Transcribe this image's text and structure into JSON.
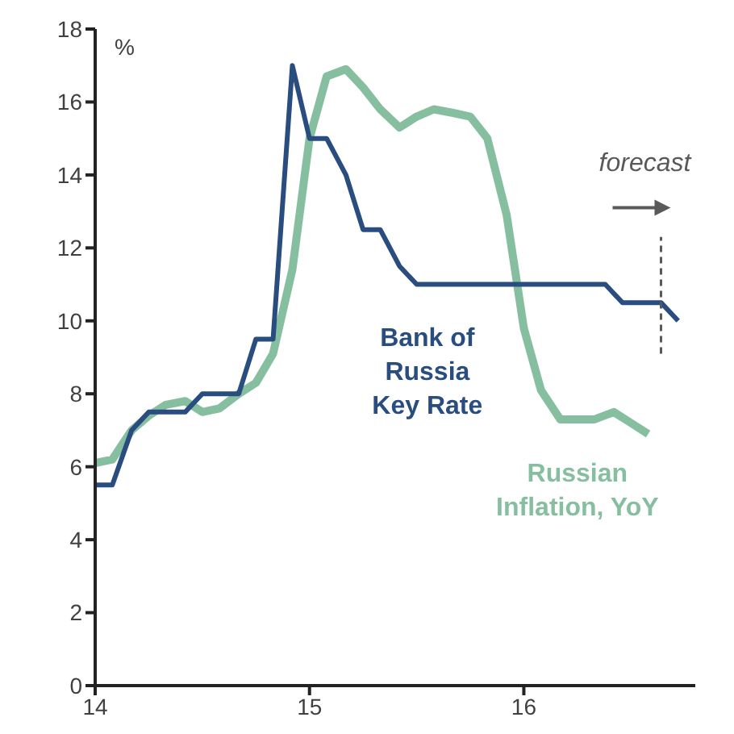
{
  "chart_data": {
    "type": "line",
    "ylabel": "%",
    "xlim": [
      14,
      16.8
    ],
    "xticks": [
      14,
      15,
      16
    ],
    "ylim": [
      0,
      18
    ],
    "yticks": [
      0,
      2,
      4,
      6,
      8,
      10,
      12,
      14,
      16,
      18
    ],
    "grid": false,
    "legend": false,
    "line_style": "solid",
    "marker": "none",
    "series": [
      {
        "name": "Bank of Russia Key Rate",
        "color": "#2a4d7f",
        "x": [
          14.0,
          14.08,
          14.17,
          14.25,
          14.33,
          14.42,
          14.5,
          14.58,
          14.67,
          14.75,
          14.83,
          14.92,
          15.0,
          15.08,
          15.17,
          15.25,
          15.33,
          15.42,
          15.5,
          15.58,
          15.67,
          15.75,
          15.83,
          15.92,
          16.0,
          16.08,
          16.17,
          16.25,
          16.38,
          16.46,
          16.64,
          16.72
        ],
        "values": [
          5.5,
          5.5,
          7,
          7.5,
          7.5,
          7.5,
          8,
          8,
          8,
          9.5,
          9.5,
          17,
          15,
          15,
          14,
          12.5,
          12.5,
          11.5,
          11,
          11,
          11,
          11,
          11,
          11,
          11,
          11,
          11,
          11,
          11,
          10.5,
          10.5,
          10
        ]
      },
      {
        "name": "Russian Inflation, YoY",
        "color": "#86bfa0",
        "x": [
          14.0,
          14.08,
          14.17,
          14.25,
          14.33,
          14.42,
          14.5,
          14.58,
          14.67,
          14.75,
          14.83,
          14.92,
          15.0,
          15.08,
          15.17,
          15.25,
          15.33,
          15.42,
          15.5,
          15.58,
          15.67,
          15.75,
          15.83,
          15.92,
          16.0,
          16.08,
          16.17,
          16.25,
          16.33,
          16.42,
          16.5,
          16.58
        ],
        "values": [
          6.1,
          6.2,
          7,
          7.4,
          7.7,
          7.8,
          7.5,
          7.6,
          8,
          8.3,
          9.1,
          11.4,
          15,
          16.7,
          16.9,
          16.4,
          15.8,
          15.3,
          15.6,
          15.8,
          15.7,
          15.6,
          15,
          12.9,
          9.8,
          8.1,
          7.3,
          7.3,
          7.3,
          7.5,
          7.2,
          6.9
        ]
      }
    ],
    "ref_lines": [
      {
        "axis": "x",
        "value": 16.64,
        "label": "forecast",
        "color": "#595959",
        "line_style": "dashed"
      }
    ]
  }
}
